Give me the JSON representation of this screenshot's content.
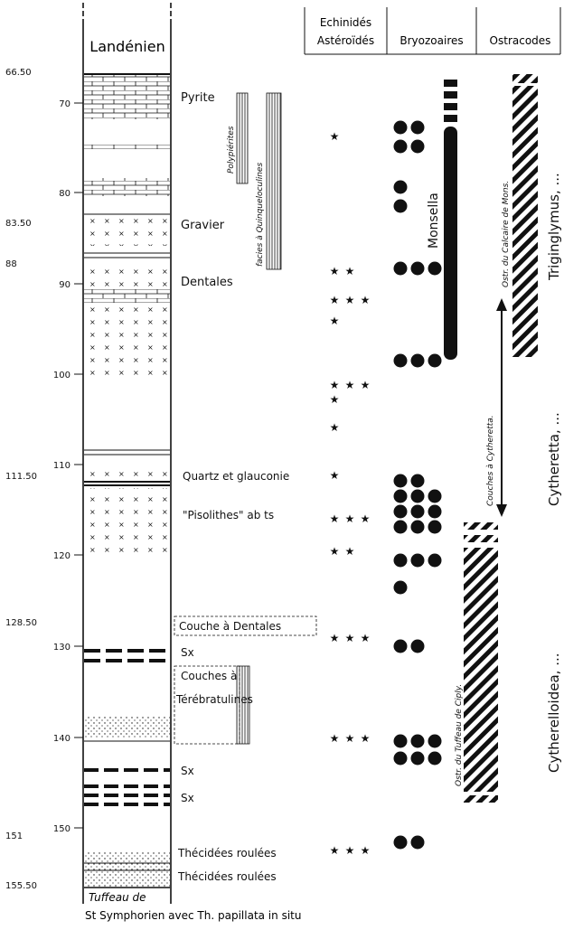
{
  "column": {
    "top_unit": "Landénien"
  },
  "headers": {
    "col1_line1": "Echinidés",
    "col1_line2": "Astéroïdés",
    "col2": "Bryozoaires",
    "col3": "Ostracodes"
  },
  "base": {
    "line1": "Tuffeau de",
    "line2": "St Symphorien avec Th. papillata in situ"
  },
  "depth_marks": [
    "66.50",
    "83.50",
    "88",
    "111.50",
    "128.50",
    "151",
    "155.50"
  ],
  "scale_ticks": [
    "70",
    "80",
    "90",
    "100",
    "110",
    "120",
    "130",
    "140",
    "150"
  ],
  "layer_labels": [
    "Pyrite",
    "Gravier",
    "Dentales",
    "Quartz et glauconie",
    "\"Pisolithes\" ab ts",
    "Couche à Dentales",
    "Sx",
    "Couches à",
    "Térébratulines",
    "Sx",
    "Sx",
    "Thécidées roulées",
    "Thécidées roulées"
  ],
  "facies_labels": [
    "Polypiérites",
    "facies à Quinqueloculines"
  ],
  "range_labels": [
    "Monsella",
    "Ostr. du Calcaire de Mons.",
    "Couches à Cytheretta.",
    "Ostr. du Tuffeau de Ciply."
  ],
  "ostracod_groups": [
    "Triginglymus, ...",
    "Cytheretta, ...",
    "Cytherelloidea, ..."
  ],
  "echinid_star_rows": [
    1,
    2,
    3,
    1,
    3,
    1,
    1,
    1,
    3,
    2,
    3,
    3,
    3
  ],
  "bryozoa_dot_rows": [
    2,
    2,
    1,
    1,
    3,
    3,
    2,
    3,
    3,
    3,
    3,
    1,
    2,
    3,
    3,
    2
  ]
}
